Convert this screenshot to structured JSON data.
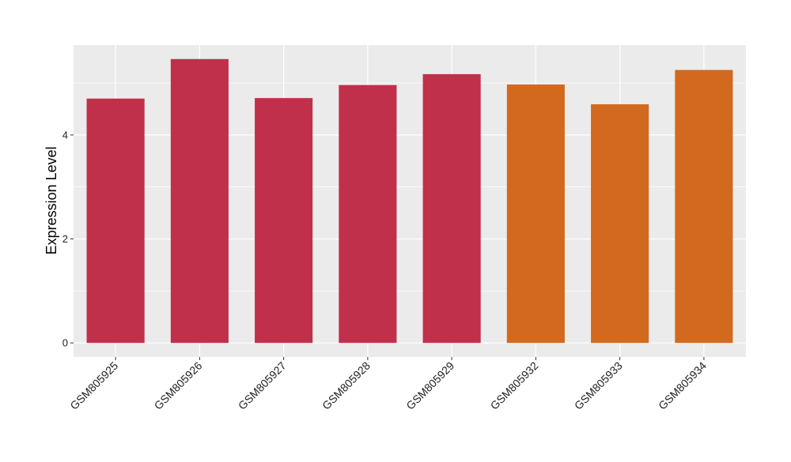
{
  "chart_data": {
    "type": "bar",
    "y_label": "Expression Level",
    "categories": [
      "GSM805925",
      "GSM805926",
      "GSM805927",
      "GSM805928",
      "GSM805929",
      "GSM805932",
      "GSM805933",
      "GSM805934"
    ],
    "values": [
      4.7,
      5.46,
      4.71,
      4.96,
      5.17,
      4.97,
      4.59,
      5.25
    ],
    "colors": [
      "#c0304a",
      "#c0304a",
      "#c0304a",
      "#c0304a",
      "#c0304a",
      "#d2691e",
      "#d2691e",
      "#d2691e"
    ],
    "ylim": [
      -0.27,
      5.73
    ],
    "yticks": [
      0,
      2,
      4
    ],
    "y_minor_ticks": [
      1,
      3,
      5
    ],
    "grid": true
  }
}
